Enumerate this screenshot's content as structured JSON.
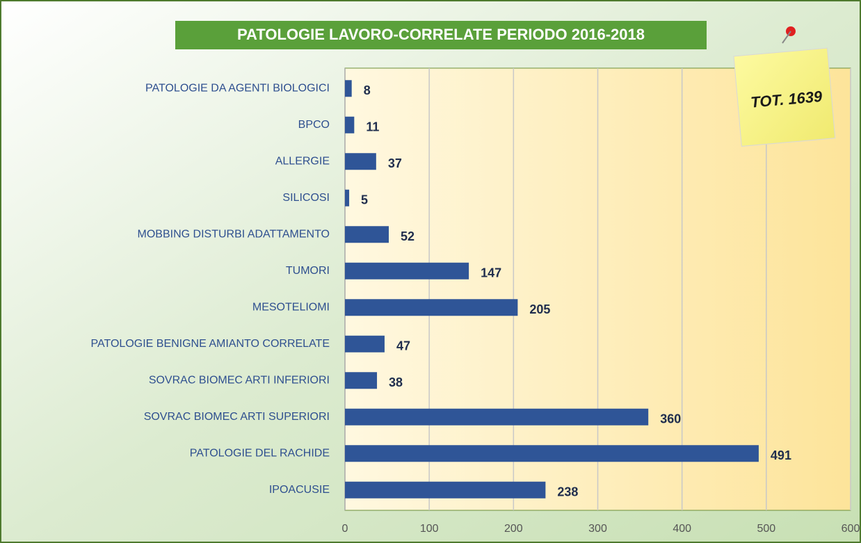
{
  "chart_data": {
    "type": "bar",
    "orientation": "horizontal",
    "title": "PATOLOGIE LAVORO-CORRELATE PERIODO 2016-2018",
    "annotation": "TOT. 1639",
    "categories": [
      "PATOLOGIE DA AGENTI BIOLOGICI",
      "BPCO",
      "ALLERGIE",
      "SILICOSI",
      "MOBBING DISTURBI ADATTAMENTO",
      "TUMORI",
      "MESOTELIOMI",
      "PATOLOGIE BENIGNE AMIANTO CORRELATE",
      "SOVRAC BIOMEC ARTI INFERIORI",
      "SOVRAC BIOMEC ARTI SUPERIORI",
      "PATOLOGIE DEL RACHIDE",
      "IPOACUSIE"
    ],
    "values": [
      8,
      11,
      37,
      5,
      52,
      147,
      205,
      47,
      38,
      360,
      491,
      238
    ],
    "color": "#2f5597",
    "xlim": [
      0,
      600
    ],
    "xticks": [
      0,
      100,
      200,
      300,
      400,
      500,
      600
    ],
    "grid": true
  }
}
